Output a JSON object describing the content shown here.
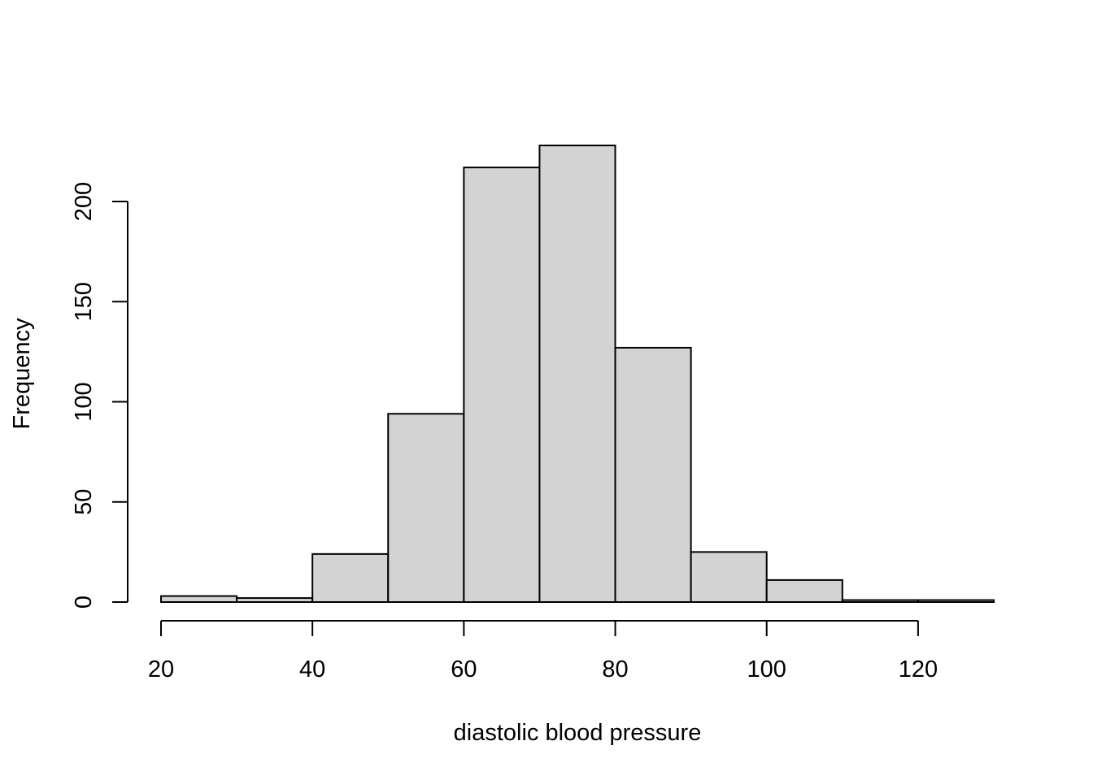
{
  "chart_data": {
    "type": "bar",
    "subtype": "histogram",
    "title": "",
    "xlabel": "diastolic blood pressure",
    "ylabel": "Frequency",
    "bins": [
      {
        "from": 20,
        "to": 30,
        "count": 3
      },
      {
        "from": 30,
        "to": 40,
        "count": 2
      },
      {
        "from": 40,
        "to": 50,
        "count": 24
      },
      {
        "from": 50,
        "to": 60,
        "count": 94
      },
      {
        "from": 60,
        "to": 70,
        "count": 217
      },
      {
        "from": 70,
        "to": 80,
        "count": 228
      },
      {
        "from": 80,
        "to": 90,
        "count": 127
      },
      {
        "from": 90,
        "to": 100,
        "count": 25
      },
      {
        "from": 100,
        "to": 110,
        "count": 11
      },
      {
        "from": 110,
        "to": 120,
        "count": 1
      },
      {
        "from": 120,
        "to": 130,
        "count": 1
      }
    ],
    "xlim": [
      20,
      130
    ],
    "ylim": [
      0,
      228
    ],
    "xticks": [
      20,
      40,
      60,
      80,
      100,
      120
    ],
    "yticks": [
      0,
      50,
      100,
      150,
      200
    ],
    "grid": false,
    "legend": "none",
    "bar_fill": "#d3d3d3",
    "bar_stroke": "#000000"
  }
}
